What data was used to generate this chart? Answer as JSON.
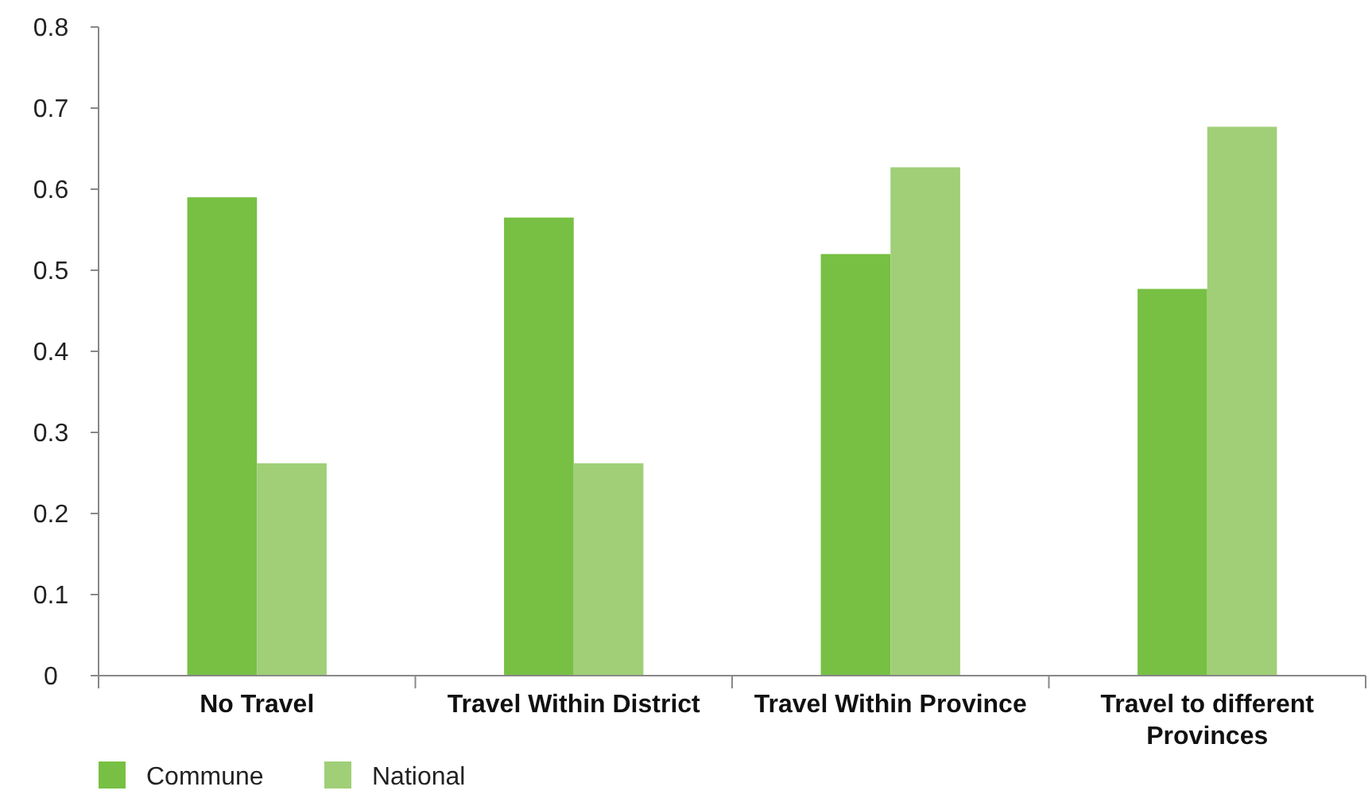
{
  "chart_data": {
    "type": "bar",
    "categories": [
      "No Travel",
      "Travel Within District",
      "Travel Within Province",
      "Travel to different Provinces"
    ],
    "series": [
      {
        "name": "Commune",
        "color": "#77c043",
        "values": [
          0.59,
          0.565,
          0.52,
          0.477
        ]
      },
      {
        "name": "National",
        "color": "#a0cf78",
        "values": [
          0.262,
          0.262,
          0.627,
          0.677
        ]
      }
    ],
    "ylim": [
      0,
      0.8
    ],
    "yticks": [
      {
        "value": 0,
        "label": "0"
      },
      0.1,
      0.2,
      0.3,
      0.4,
      0.5,
      0.6,
      0.7,
      0.8
    ],
    "grid": false,
    "legend": "bottom left"
  }
}
